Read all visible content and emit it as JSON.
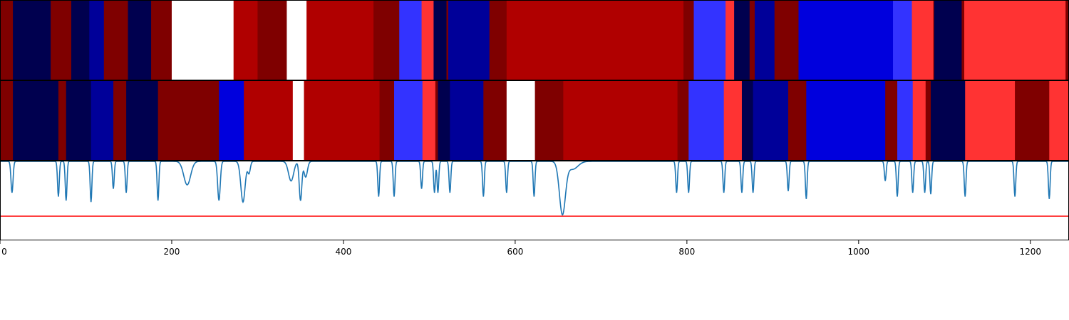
{
  "chart_data": {
    "type": "heatmap",
    "title": "",
    "xlabel": "",
    "ylabel": "",
    "xlim": [
      0,
      1245
    ],
    "grid": false,
    "legend": "none",
    "colors": {
      "darkred": "#7f0000",
      "red": "#b00000",
      "lightred": "#ff3333",
      "navy": "#00004f",
      "darkblue": "#000099",
      "blue": "#0000dd",
      "lightblue": "#3333ff",
      "white": "#ffffff",
      "line": "#1f77b4",
      "threshold": "#ff0000"
    },
    "x_ticks": [
      {
        "value": 0,
        "label": "0"
      },
      {
        "value": 200,
        "label": "200"
      },
      {
        "value": 400,
        "label": "400"
      },
      {
        "value": 600,
        "label": "600"
      },
      {
        "value": 800,
        "label": "800"
      },
      {
        "value": 1000,
        "label": "1000"
      },
      {
        "value": 1200,
        "label": "1200"
      }
    ],
    "track_1_segments": [
      [
        0,
        15,
        "darkred"
      ],
      [
        15,
        59,
        "navy"
      ],
      [
        59,
        83,
        "darkred"
      ],
      [
        83,
        104,
        "navy"
      ],
      [
        104,
        121,
        "darkblue"
      ],
      [
        121,
        149,
        "darkred"
      ],
      [
        149,
        176,
        "navy"
      ],
      [
        176,
        200,
        "darkred"
      ],
      [
        200,
        272,
        "white"
      ],
      [
        272,
        300,
        "red"
      ],
      [
        300,
        334,
        "darkred"
      ],
      [
        334,
        357,
        "white"
      ],
      [
        357,
        435,
        "red"
      ],
      [
        435,
        465,
        "darkred"
      ],
      [
        465,
        491,
        "lightblue"
      ],
      [
        491,
        505,
        "lightred"
      ],
      [
        505,
        520,
        "navy"
      ],
      [
        520,
        522,
        "darkred"
      ],
      [
        522,
        570,
        "darkblue"
      ],
      [
        570,
        590,
        "darkred"
      ],
      [
        590,
        796,
        "red"
      ],
      [
        796,
        808,
        "darkred"
      ],
      [
        808,
        845,
        "lightblue"
      ],
      [
        845,
        855,
        "lightred"
      ],
      [
        855,
        873,
        "navy"
      ],
      [
        873,
        879,
        "darkred"
      ],
      [
        879,
        902,
        "darkblue"
      ],
      [
        902,
        930,
        "darkred"
      ],
      [
        930,
        1040,
        "blue"
      ],
      [
        1040,
        1062,
        "lightblue"
      ],
      [
        1062,
        1087,
        "lightred"
      ],
      [
        1087,
        1088,
        "darkred"
      ],
      [
        1088,
        1120,
        "navy"
      ],
      [
        1120,
        1123,
        "darkred"
      ],
      [
        1123,
        1241,
        "lightred"
      ],
      [
        1241,
        1245,
        "darkred"
      ]
    ],
    "track_2_segments": [
      [
        0,
        15,
        "darkred"
      ],
      [
        15,
        68,
        "navy"
      ],
      [
        68,
        77,
        "darkred"
      ],
      [
        77,
        106,
        "navy"
      ],
      [
        106,
        132,
        "darkblue"
      ],
      [
        132,
        147,
        "darkred"
      ],
      [
        147,
        184,
        "navy"
      ],
      [
        184,
        255,
        "darkred"
      ],
      [
        255,
        284,
        "blue"
      ],
      [
        284,
        341,
        "red"
      ],
      [
        341,
        354,
        "white"
      ],
      [
        354,
        442,
        "red"
      ],
      [
        442,
        459,
        "darkred"
      ],
      [
        459,
        492,
        "lightblue"
      ],
      [
        492,
        507,
        "lightred"
      ],
      [
        507,
        510,
        "darkred"
      ],
      [
        510,
        524,
        "navy"
      ],
      [
        524,
        563,
        "darkblue"
      ],
      [
        563,
        590,
        "darkred"
      ],
      [
        590,
        623,
        "white"
      ],
      [
        623,
        656,
        "darkred"
      ],
      [
        656,
        789,
        "red"
      ],
      [
        789,
        802,
        "darkred"
      ],
      [
        802,
        843,
        "lightblue"
      ],
      [
        843,
        864,
        "lightred"
      ],
      [
        864,
        877,
        "navy"
      ],
      [
        877,
        918,
        "darkblue"
      ],
      [
        918,
        939,
        "darkred"
      ],
      [
        939,
        1031,
        "blue"
      ],
      [
        1031,
        1045,
        "darkred"
      ],
      [
        1045,
        1063,
        "lightblue"
      ],
      [
        1063,
        1078,
        "lightred"
      ],
      [
        1078,
        1084,
        "darkred"
      ],
      [
        1084,
        1124,
        "navy"
      ],
      [
        1124,
        1182,
        "lightred"
      ],
      [
        1182,
        1222,
        "darkred"
      ],
      [
        1222,
        1245,
        "lightred"
      ]
    ],
    "line_ylim": [
      0,
      1
    ],
    "threshold_value": 0.3,
    "line_baseline": 1.0,
    "dips": [
      [
        14,
        0.6,
        1.2
      ],
      [
        68,
        0.55,
        1.0
      ],
      [
        77,
        0.5,
        1.0
      ],
      [
        106,
        0.48,
        1.0
      ],
      [
        132,
        0.65,
        1.0
      ],
      [
        147,
        0.6,
        1.0
      ],
      [
        184,
        0.5,
        1.0
      ],
      [
        218,
        0.7,
        4.0
      ],
      [
        255,
        0.5,
        1.5
      ],
      [
        283,
        0.48,
        2.5
      ],
      [
        290,
        0.85,
        1.5
      ],
      [
        339,
        0.75,
        3.0
      ],
      [
        350,
        0.5,
        1.5
      ],
      [
        356,
        0.8,
        2.0
      ],
      [
        441,
        0.55,
        1.0
      ],
      [
        459,
        0.55,
        1.0
      ],
      [
        491,
        0.65,
        1.0
      ],
      [
        506,
        0.6,
        1.0
      ],
      [
        510,
        0.6,
        1.0
      ],
      [
        524,
        0.6,
        1.0
      ],
      [
        563,
        0.55,
        1.0
      ],
      [
        590,
        0.6,
        1.0
      ],
      [
        622,
        0.55,
        1.0
      ],
      [
        655,
        0.33,
        3.5
      ],
      [
        667,
        0.9,
        6.0
      ],
      [
        788,
        0.6,
        1.0
      ],
      [
        802,
        0.6,
        1.0
      ],
      [
        843,
        0.6,
        1.0
      ],
      [
        864,
        0.6,
        1.0
      ],
      [
        877,
        0.6,
        1.0
      ],
      [
        918,
        0.62,
        1.0
      ],
      [
        939,
        0.52,
        1.0
      ],
      [
        1031,
        0.75,
        1.0
      ],
      [
        1045,
        0.55,
        1.0
      ],
      [
        1063,
        0.6,
        1.0
      ],
      [
        1077,
        0.6,
        1.0
      ],
      [
        1084,
        0.58,
        1.0
      ],
      [
        1124,
        0.55,
        1.0
      ],
      [
        1182,
        0.55,
        1.0
      ],
      [
        1222,
        0.52,
        1.0
      ]
    ]
  }
}
